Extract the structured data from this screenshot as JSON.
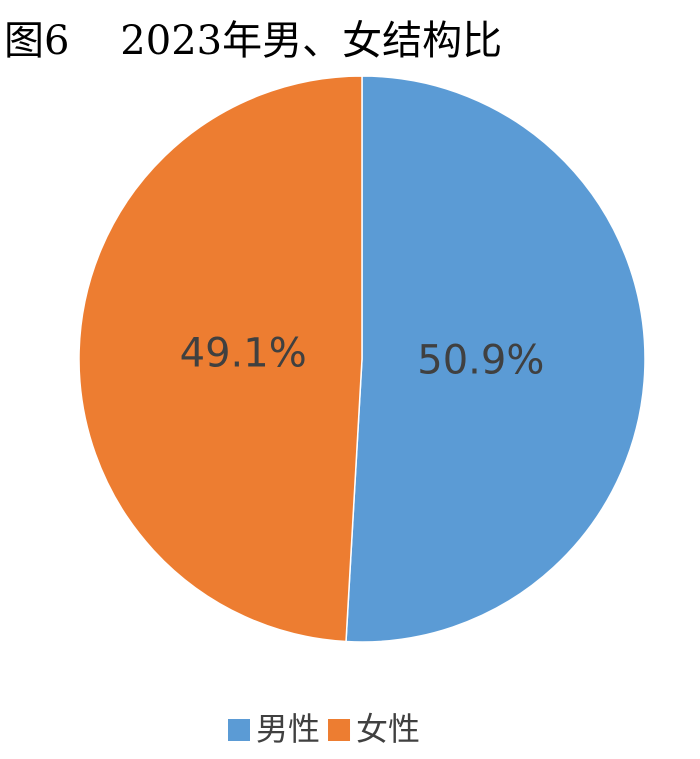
{
  "chart_data": {
    "type": "pie",
    "title": "图6    2023年男、女结构比",
    "categories": [
      "男性",
      "女性"
    ],
    "values": [
      50.9,
      49.1
    ],
    "value_labels": [
      "50.9%",
      "49.1%"
    ],
    "colors": [
      "#5b9bd5",
      "#ed7d31"
    ]
  }
}
